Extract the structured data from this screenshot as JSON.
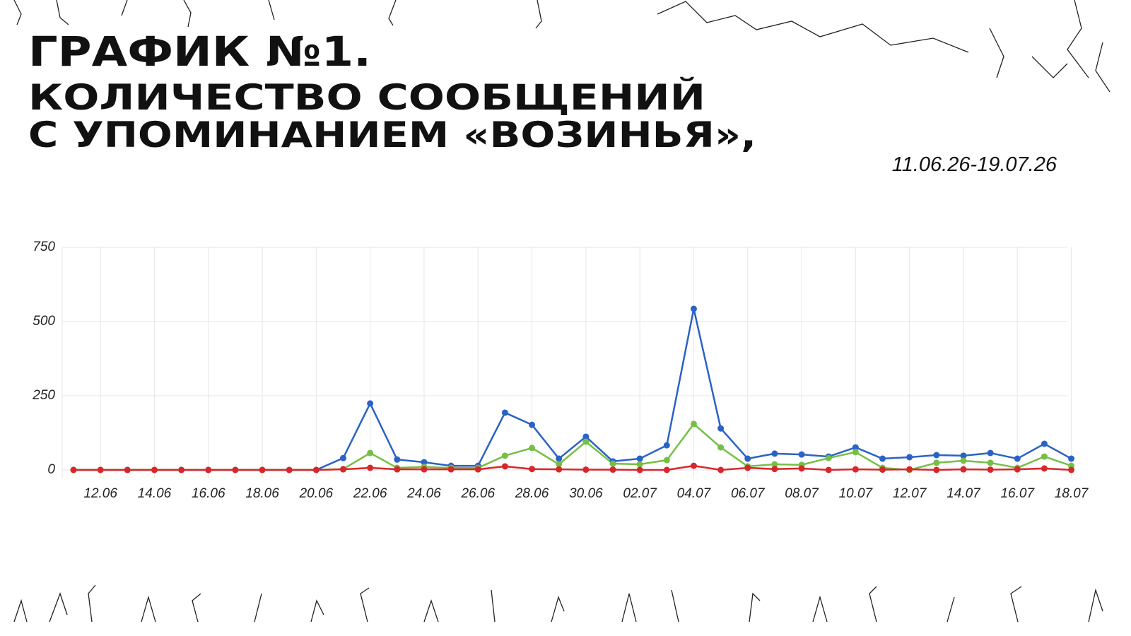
{
  "chart_data": {
    "type": "line",
    "title": "ГРАФИК №1.",
    "subtitle_lines": [
      "КОЛИЧЕСТВО СООБЩЕНИЙ",
      "С УПОМИНАНИЕМ «ВОЗИНЬЯ»,"
    ],
    "period": "11.06.26-19.07.26",
    "categories": [
      null,
      "12.06",
      null,
      "14.06",
      null,
      "16.06",
      null,
      "18.06",
      null,
      "20.06",
      null,
      "22.06",
      null,
      "24.06",
      null,
      "26.06",
      null,
      "28.06",
      null,
      "30.06",
      null,
      "02.07",
      null,
      "04.07",
      null,
      "06.07",
      null,
      "08.07",
      null,
      "10.07",
      null,
      "12.07",
      null,
      "14.07",
      null,
      "16.07",
      null,
      "18.07"
    ],
    "series": [
      {
        "color": "#2a62c6",
        "values": [
          0,
          0,
          0,
          0,
          0,
          0,
          0,
          0,
          0,
          0,
          40,
          224,
          35,
          26,
          14,
          14,
          193,
          152,
          38,
          112,
          29,
          38,
          83,
          543,
          140,
          38,
          55,
          52,
          45,
          76,
          38,
          43,
          50,
          48,
          57,
          38,
          88,
          38
        ]
      },
      {
        "color": "#76bf45",
        "values": [
          0,
          0,
          0,
          0,
          0,
          0,
          0,
          0,
          0,
          0,
          3,
          57,
          7,
          10,
          7,
          7,
          48,
          74,
          19,
          95,
          21,
          19,
          33,
          155,
          76,
          12,
          19,
          17,
          40,
          60,
          7,
          0,
          24,
          31,
          24,
          7,
          45,
          14
        ]
      },
      {
        "color": "#d9262b",
        "values": [
          0,
          0,
          0,
          0,
          0,
          0,
          0,
          0,
          0,
          0,
          2,
          7,
          2,
          2,
          2,
          2,
          12,
          3,
          2,
          1,
          1,
          0,
          0,
          14,
          0,
          7,
          3,
          5,
          0,
          2,
          1,
          2,
          0,
          2,
          1,
          2,
          5,
          0
        ]
      }
    ],
    "ylim": [
      0,
      750
    ],
    "yticks": [
      0,
      250,
      500,
      750
    ],
    "grid": true
  }
}
